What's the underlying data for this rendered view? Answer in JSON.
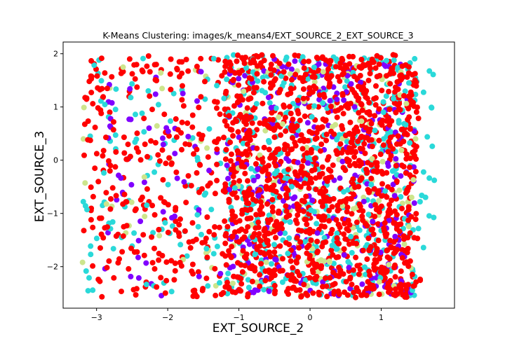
{
  "chart_data": {
    "type": "scatter",
    "title": "K-Means Clustering: images/k_means4/EXT_SOURCE_2_EXT_SOURCE_3",
    "xlabel": "EXT_SOURCE_2",
    "ylabel": "EXT_SOURCE_3",
    "xlim": [
      -3.47,
      2.03
    ],
    "ylim": [
      -2.78,
      2.22
    ],
    "xticks": [
      -3,
      -2,
      -1,
      0,
      1
    ],
    "yticks": [
      -2,
      -1,
      0,
      1,
      2
    ],
    "grid": false,
    "legend": "none",
    "clusters": [
      {
        "color": "#ff0000",
        "x_range": [
          -3.2,
          1.55
        ],
        "y_range": [
          -2.58,
          1.98
        ],
        "weight": 0.6
      },
      {
        "color": "#2ad9d9",
        "x_range": [
          -3.2,
          1.75
        ],
        "y_range": [
          -2.55,
          1.98
        ],
        "weight": 0.2
      },
      {
        "color": "#8000ff",
        "x_range": [
          -2.9,
          1.5
        ],
        "y_range": [
          -2.55,
          1.9
        ],
        "weight": 0.13
      },
      {
        "color": "#cde58c",
        "x_range": [
          -3.2,
          1.5
        ],
        "y_range": [
          -2.55,
          1.8
        ],
        "weight": 0.07
      }
    ],
    "outliers": [
      {
        "x": 1.73,
        "y": 1.61,
        "color": "#2ad9d9"
      }
    ]
  }
}
